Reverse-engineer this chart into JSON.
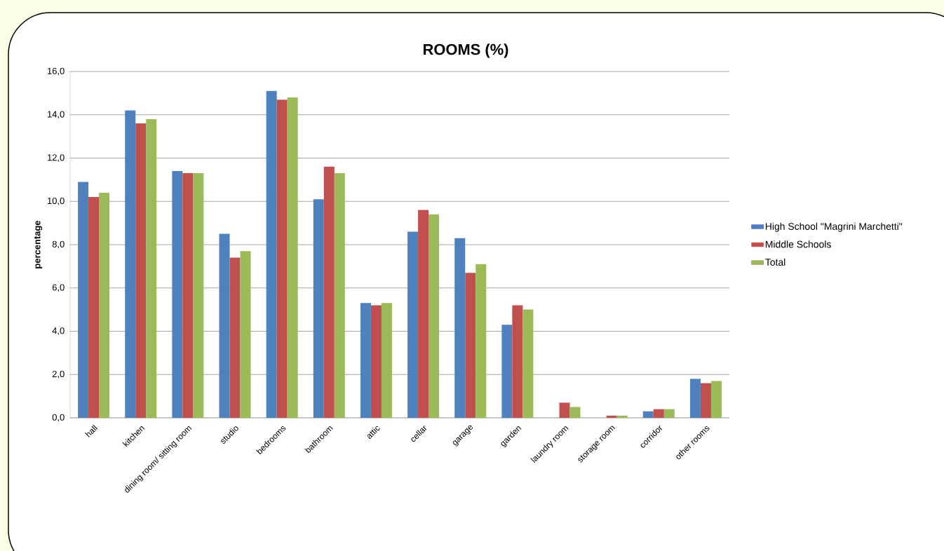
{
  "chart_data": {
    "type": "bar",
    "title": "ROOMS (%)",
    "ylabel": "percentage",
    "categories": [
      "hall",
      "kitchen",
      "dining room/ sitting room",
      "studio",
      "bedrooms",
      "bathroom",
      "attic",
      "cellar",
      "garage",
      "garden",
      "laundry room",
      "storage room",
      "corridor",
      "other rooms"
    ],
    "series": [
      {
        "name": "High School \"Magrini Marchetti\"",
        "color": "#4f81bd",
        "values": [
          10.9,
          14.2,
          11.4,
          8.5,
          15.1,
          10.1,
          5.3,
          8.6,
          8.3,
          4.3,
          0.0,
          0.0,
          0.3,
          1.8
        ]
      },
      {
        "name": "Middle Schools",
        "color": "#c0504d",
        "values": [
          10.2,
          13.6,
          11.3,
          7.4,
          14.7,
          11.6,
          5.2,
          9.6,
          6.7,
          5.2,
          0.7,
          0.1,
          0.4,
          1.6
        ]
      },
      {
        "name": "Total",
        "color": "#9bbb59",
        "values": [
          10.4,
          13.8,
          11.3,
          7.7,
          14.8,
          11.3,
          5.3,
          9.4,
          7.1,
          5.0,
          0.5,
          0.1,
          0.4,
          1.7
        ]
      }
    ],
    "ylim": [
      0,
      16
    ],
    "yticks": [
      {
        "value": 0,
        "label": "0,0"
      },
      {
        "value": 2,
        "label": "2,0"
      },
      {
        "value": 4,
        "label": "4,0"
      },
      {
        "value": 6,
        "label": "6,0"
      },
      {
        "value": 8,
        "label": "8,0"
      },
      {
        "value": 10,
        "label": "10,0"
      },
      {
        "value": 12,
        "label": "12,0"
      },
      {
        "value": 14,
        "label": "14,0"
      },
      {
        "value": 16,
        "label": "16,0"
      }
    ],
    "grid": "y",
    "legend": "right"
  }
}
